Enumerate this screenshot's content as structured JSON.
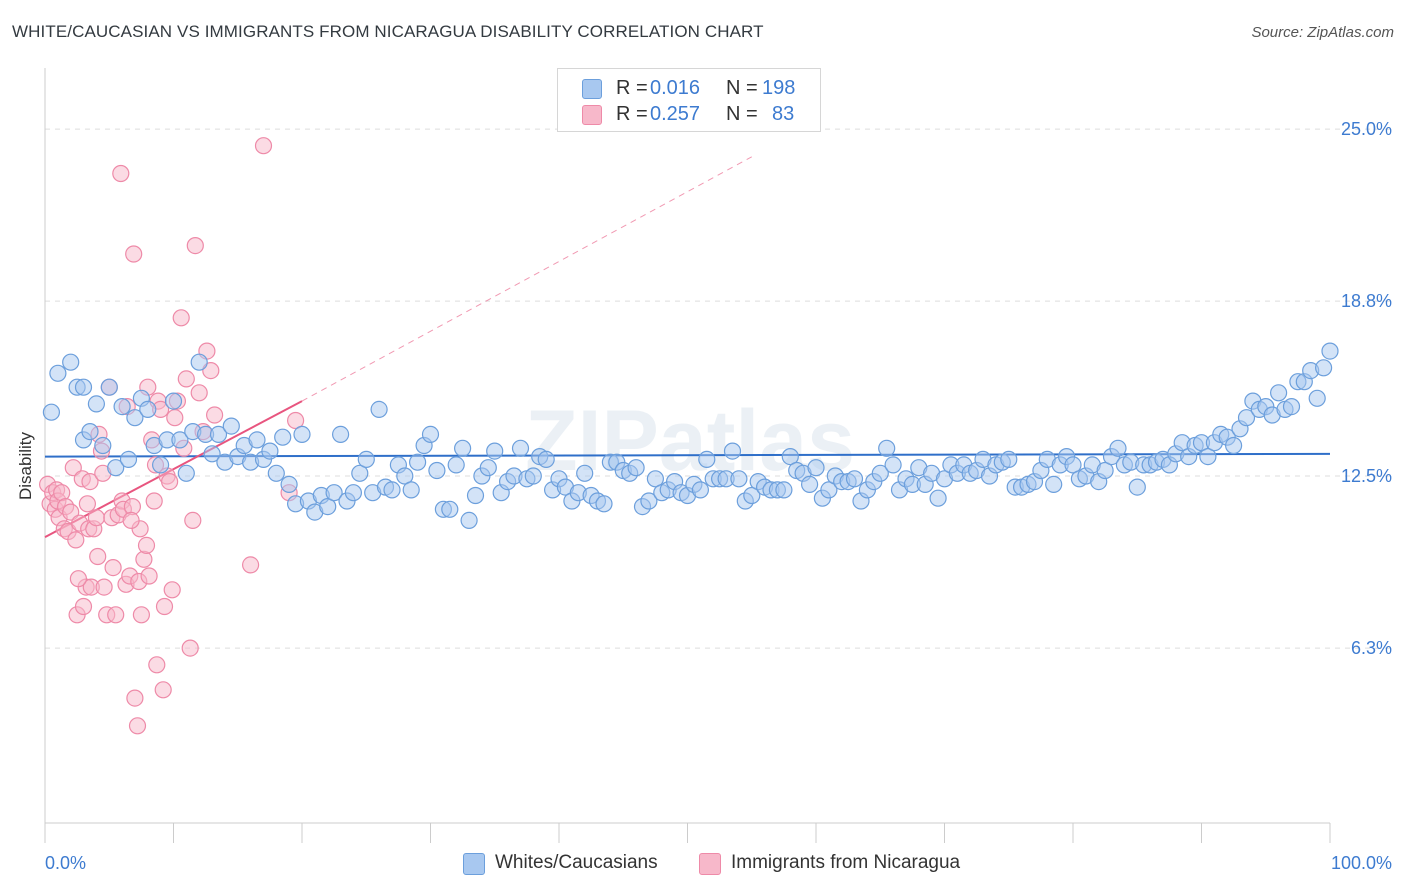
{
  "header": {
    "title": "WHITE/CAUCASIAN VS IMMIGRANTS FROM NICARAGUA DISABILITY CORRELATION CHART",
    "source": "Source: ZipAtlas.com"
  },
  "watermark": "ZIPatlas",
  "legend_top": {
    "rows": [
      {
        "r_label": "R =",
        "r_value": "0.016",
        "n_label": "N =",
        "n_value": "198",
        "color": "#a8c8f0"
      },
      {
        "r_label": "R =",
        "r_value": "0.257",
        "n_label": "N =",
        "n_value": "83",
        "color": "#f7b8ca"
      }
    ]
  },
  "legend_bottom": {
    "items": [
      {
        "label": "Whites/Caucasians",
        "color": "#a8c8f0"
      },
      {
        "label": "Immigrants from Nicaragua",
        "color": "#f7b8ca"
      }
    ]
  },
  "colors": {
    "blue_fill": "#a8c8f0",
    "blue_stroke": "#6c9fdc",
    "blue_line": "#2f6fc9",
    "pink_fill": "#f7b8ca",
    "pink_stroke": "#ee8aa8",
    "pink_line": "#e8557f",
    "grid": "#dddddd",
    "axis_text": "#3d7bd0"
  },
  "chart_data": {
    "type": "scatter",
    "title": "WHITE/CAUCASIAN VS IMMIGRANTS FROM NICARAGUA DISABILITY CORRELATION CHART",
    "xlabel": "",
    "ylabel": "Disability",
    "x_tick_labels": [
      "0.0%",
      "100.0%"
    ],
    "y_tick_labels": [
      "25.0%",
      "18.8%",
      "12.5%",
      "6.3%"
    ],
    "y_ticks": [
      25.0,
      18.8,
      12.5,
      6.3
    ],
    "xlim": [
      0,
      100
    ],
    "ylim": [
      0,
      27.2
    ],
    "grid": "horizontal dashed",
    "series": [
      {
        "name": "Whites/Caucasians",
        "color": "#a8c8f0",
        "trend": {
          "x": [
            0,
            100
          ],
          "y": [
            13.2,
            13.3
          ]
        },
        "points": [
          [
            0.5,
            14.8
          ],
          [
            1,
            16.2
          ],
          [
            2,
            16.6
          ],
          [
            2.5,
            15.7
          ],
          [
            3,
            13.8
          ],
          [
            3,
            15.7
          ],
          [
            3.5,
            14.1
          ],
          [
            4,
            15.1
          ],
          [
            4.5,
            13.6
          ],
          [
            5,
            15.7
          ],
          [
            5.5,
            12.8
          ],
          [
            6,
            15.0
          ],
          [
            6.5,
            13.1
          ],
          [
            7,
            14.6
          ],
          [
            7.5,
            15.3
          ],
          [
            8,
            14.9
          ],
          [
            8.5,
            13.6
          ],
          [
            9,
            12.9
          ],
          [
            9.5,
            13.8
          ],
          [
            10,
            15.2
          ],
          [
            10.5,
            13.8
          ],
          [
            11,
            12.6
          ],
          [
            11.5,
            14.1
          ],
          [
            12,
            16.6
          ],
          [
            12.5,
            14.0
          ],
          [
            13,
            13.3
          ],
          [
            13.5,
            14.0
          ],
          [
            14,
            13.0
          ],
          [
            14.5,
            14.3
          ],
          [
            15,
            13.2
          ],
          [
            15.5,
            13.6
          ],
          [
            16,
            13.0
          ],
          [
            16.5,
            13.8
          ],
          [
            17,
            13.1
          ],
          [
            17.5,
            13.4
          ],
          [
            18,
            12.6
          ],
          [
            18.5,
            13.9
          ],
          [
            19,
            12.2
          ],
          [
            19.5,
            11.5
          ],
          [
            20,
            14.0
          ],
          [
            20.5,
            11.6
          ],
          [
            21,
            11.2
          ],
          [
            21.5,
            11.8
          ],
          [
            22,
            11.4
          ],
          [
            22.5,
            11.9
          ],
          [
            23,
            14.0
          ],
          [
            23.5,
            11.6
          ],
          [
            24,
            11.9
          ],
          [
            24.5,
            12.6
          ],
          [
            25,
            13.1
          ],
          [
            25.5,
            11.9
          ],
          [
            26,
            14.9
          ],
          [
            26.5,
            12.1
          ],
          [
            27,
            12.0
          ],
          [
            27.5,
            12.9
          ],
          [
            28,
            12.5
          ],
          [
            28.5,
            12.0
          ],
          [
            29,
            13.0
          ],
          [
            29.5,
            13.6
          ],
          [
            30,
            14.0
          ],
          [
            30.5,
            12.7
          ],
          [
            31,
            11.3
          ],
          [
            31.5,
            11.3
          ],
          [
            32,
            12.9
          ],
          [
            32.5,
            13.5
          ],
          [
            33,
            10.9
          ],
          [
            33.5,
            11.8
          ],
          [
            34,
            12.5
          ],
          [
            34.5,
            12.8
          ],
          [
            35,
            13.4
          ],
          [
            35.5,
            11.9
          ],
          [
            36,
            12.3
          ],
          [
            36.5,
            12.5
          ],
          [
            37,
            13.5
          ],
          [
            37.5,
            12.4
          ],
          [
            38,
            12.5
          ],
          [
            38.5,
            13.2
          ],
          [
            39,
            13.1
          ],
          [
            39.5,
            12.0
          ],
          [
            40,
            12.4
          ],
          [
            40.5,
            12.1
          ],
          [
            41,
            11.6
          ],
          [
            41.5,
            11.9
          ],
          [
            42,
            12.6
          ],
          [
            42.5,
            11.8
          ],
          [
            43,
            11.6
          ],
          [
            43.5,
            11.5
          ],
          [
            44,
            13.0
          ],
          [
            44.5,
            13.0
          ],
          [
            45,
            12.7
          ],
          [
            45.5,
            12.6
          ],
          [
            46,
            12.8
          ],
          [
            46.5,
            11.4
          ],
          [
            47,
            11.6
          ],
          [
            47.5,
            12.4
          ],
          [
            48,
            11.9
          ],
          [
            48.5,
            12.0
          ],
          [
            49,
            12.3
          ],
          [
            49.5,
            11.9
          ],
          [
            50,
            11.8
          ],
          [
            50.5,
            12.2
          ],
          [
            51,
            12.0
          ],
          [
            51.5,
            13.1
          ],
          [
            52,
            12.4
          ],
          [
            52.5,
            12.4
          ],
          [
            53,
            12.4
          ],
          [
            53.5,
            13.4
          ],
          [
            54,
            12.4
          ],
          [
            54.5,
            11.6
          ],
          [
            55,
            11.8
          ],
          [
            55.5,
            12.3
          ],
          [
            56,
            12.1
          ],
          [
            56.5,
            12.0
          ],
          [
            57,
            12.0
          ],
          [
            57.5,
            12.0
          ],
          [
            58,
            13.2
          ],
          [
            58.5,
            12.7
          ],
          [
            59,
            12.6
          ],
          [
            59.5,
            12.2
          ],
          [
            60,
            12.8
          ],
          [
            60.5,
            11.7
          ],
          [
            61,
            12.0
          ],
          [
            61.5,
            12.5
          ],
          [
            62,
            12.3
          ],
          [
            62.5,
            12.3
          ],
          [
            63,
            12.4
          ],
          [
            63.5,
            11.6
          ],
          [
            64,
            12.0
          ],
          [
            64.5,
            12.3
          ],
          [
            65,
            12.6
          ],
          [
            65.5,
            13.5
          ],
          [
            66,
            12.9
          ],
          [
            66.5,
            12.0
          ],
          [
            67,
            12.4
          ],
          [
            67.5,
            12.2
          ],
          [
            68,
            12.8
          ],
          [
            68.5,
            12.2
          ],
          [
            69,
            12.6
          ],
          [
            69.5,
            11.7
          ],
          [
            70,
            12.4
          ],
          [
            70.5,
            12.9
          ],
          [
            71,
            12.6
          ],
          [
            71.5,
            12.9
          ],
          [
            72,
            12.6
          ],
          [
            72.5,
            12.7
          ],
          [
            73,
            13.1
          ],
          [
            73.5,
            12.5
          ],
          [
            74,
            12.9
          ],
          [
            74.5,
            13.0
          ],
          [
            75,
            13.1
          ],
          [
            75.5,
            12.1
          ],
          [
            76,
            12.1
          ],
          [
            76.5,
            12.2
          ],
          [
            77,
            12.3
          ],
          [
            77.5,
            12.7
          ],
          [
            78,
            13.1
          ],
          [
            78.5,
            12.2
          ],
          [
            79,
            12.9
          ],
          [
            79.5,
            13.2
          ],
          [
            80,
            12.9
          ],
          [
            80.5,
            12.4
          ],
          [
            81,
            12.5
          ],
          [
            81.5,
            12.9
          ],
          [
            82,
            12.3
          ],
          [
            82.5,
            12.7
          ],
          [
            83,
            13.2
          ],
          [
            83.5,
            13.5
          ],
          [
            84,
            12.9
          ],
          [
            84.5,
            13.0
          ],
          [
            85,
            12.1
          ],
          [
            85.5,
            12.9
          ],
          [
            86,
            12.9
          ],
          [
            86.5,
            13.0
          ],
          [
            87,
            13.1
          ],
          [
            87.5,
            12.9
          ],
          [
            88,
            13.3
          ],
          [
            88.5,
            13.7
          ],
          [
            89,
            13.2
          ],
          [
            89.5,
            13.6
          ],
          [
            90,
            13.7
          ],
          [
            90.5,
            13.2
          ],
          [
            91,
            13.7
          ],
          [
            91.5,
            14.0
          ],
          [
            92,
            13.9
          ],
          [
            92.5,
            13.6
          ],
          [
            93,
            14.2
          ],
          [
            93.5,
            14.6
          ],
          [
            94,
            15.2
          ],
          [
            94.5,
            14.9
          ],
          [
            95,
            15.0
          ],
          [
            95.5,
            14.7
          ],
          [
            96,
            15.5
          ],
          [
            96.5,
            14.9
          ],
          [
            97,
            15.0
          ],
          [
            97.5,
            15.9
          ],
          [
            98,
            15.9
          ],
          [
            98.5,
            16.3
          ],
          [
            99,
            15.3
          ],
          [
            99.5,
            16.4
          ],
          [
            100,
            17.0
          ]
        ]
      },
      {
        "name": "Immigrants from Nicaragua",
        "color": "#f7b8ca",
        "trend": {
          "x": [
            0,
            20
          ],
          "y": [
            10.3,
            15.2
          ]
        },
        "trend_extension": {
          "x": [
            20,
            55
          ],
          "y": [
            15.2,
            24.0
          ]
        },
        "points": [
          [
            0.2,
            12.2
          ],
          [
            0.4,
            11.5
          ],
          [
            0.6,
            11.9
          ],
          [
            0.8,
            11.3
          ],
          [
            0.9,
            12.0
          ],
          [
            1.0,
            11.6
          ],
          [
            1.1,
            11.0
          ],
          [
            1.3,
            11.9
          ],
          [
            1.5,
            10.6
          ],
          [
            1.6,
            11.4
          ],
          [
            1.8,
            10.5
          ],
          [
            2.0,
            11.2
          ],
          [
            2.2,
            12.8
          ],
          [
            2.4,
            10.2
          ],
          [
            2.5,
            7.5
          ],
          [
            2.7,
            10.8
          ],
          [
            2.9,
            12.4
          ],
          [
            3.0,
            7.8
          ],
          [
            3.2,
            8.5
          ],
          [
            3.4,
            10.6
          ],
          [
            3.5,
            12.3
          ],
          [
            3.6,
            8.5
          ],
          [
            3.8,
            10.6
          ],
          [
            4.0,
            11.0
          ],
          [
            4.2,
            14.0
          ],
          [
            4.4,
            13.4
          ],
          [
            4.5,
            12.6
          ],
          [
            4.6,
            8.5
          ],
          [
            4.8,
            7.5
          ],
          [
            5.0,
            15.7
          ],
          [
            5.2,
            11.0
          ],
          [
            5.3,
            9.2
          ],
          [
            5.5,
            7.5
          ],
          [
            5.7,
            11.1
          ],
          [
            5.9,
            23.4
          ],
          [
            6.0,
            11.6
          ],
          [
            6.1,
            11.3
          ],
          [
            6.3,
            8.6
          ],
          [
            6.4,
            15.0
          ],
          [
            6.6,
            8.9
          ],
          [
            6.8,
            11.4
          ],
          [
            6.9,
            20.5
          ],
          [
            7.0,
            4.5
          ],
          [
            7.2,
            3.5
          ],
          [
            7.3,
            8.7
          ],
          [
            7.4,
            10.6
          ],
          [
            7.5,
            7.5
          ],
          [
            7.7,
            9.5
          ],
          [
            7.9,
            10.0
          ],
          [
            8.0,
            15.7
          ],
          [
            8.1,
            8.9
          ],
          [
            8.3,
            13.8
          ],
          [
            8.5,
            11.6
          ],
          [
            8.6,
            12.9
          ],
          [
            8.7,
            5.7
          ],
          [
            8.8,
            15.2
          ],
          [
            9.0,
            14.9
          ],
          [
            9.2,
            4.8
          ],
          [
            9.3,
            7.8
          ],
          [
            9.5,
            12.5
          ],
          [
            9.7,
            12.3
          ],
          [
            9.9,
            8.4
          ],
          [
            10.1,
            14.6
          ],
          [
            10.3,
            15.2
          ],
          [
            10.6,
            18.2
          ],
          [
            10.8,
            13.5
          ],
          [
            11.0,
            16.0
          ],
          [
            11.3,
            6.3
          ],
          [
            11.5,
            10.9
          ],
          [
            11.7,
            20.8
          ],
          [
            12.0,
            15.5
          ],
          [
            12.3,
            14.1
          ],
          [
            12.6,
            17.0
          ],
          [
            12.9,
            16.3
          ],
          [
            13.2,
            14.7
          ],
          [
            16.0,
            9.3
          ],
          [
            17.0,
            24.4
          ],
          [
            19.0,
            11.9
          ],
          [
            19.5,
            14.5
          ],
          [
            3.3,
            11.5
          ],
          [
            4.1,
            9.6
          ],
          [
            6.7,
            10.9
          ],
          [
            2.6,
            8.8
          ]
        ]
      }
    ]
  }
}
